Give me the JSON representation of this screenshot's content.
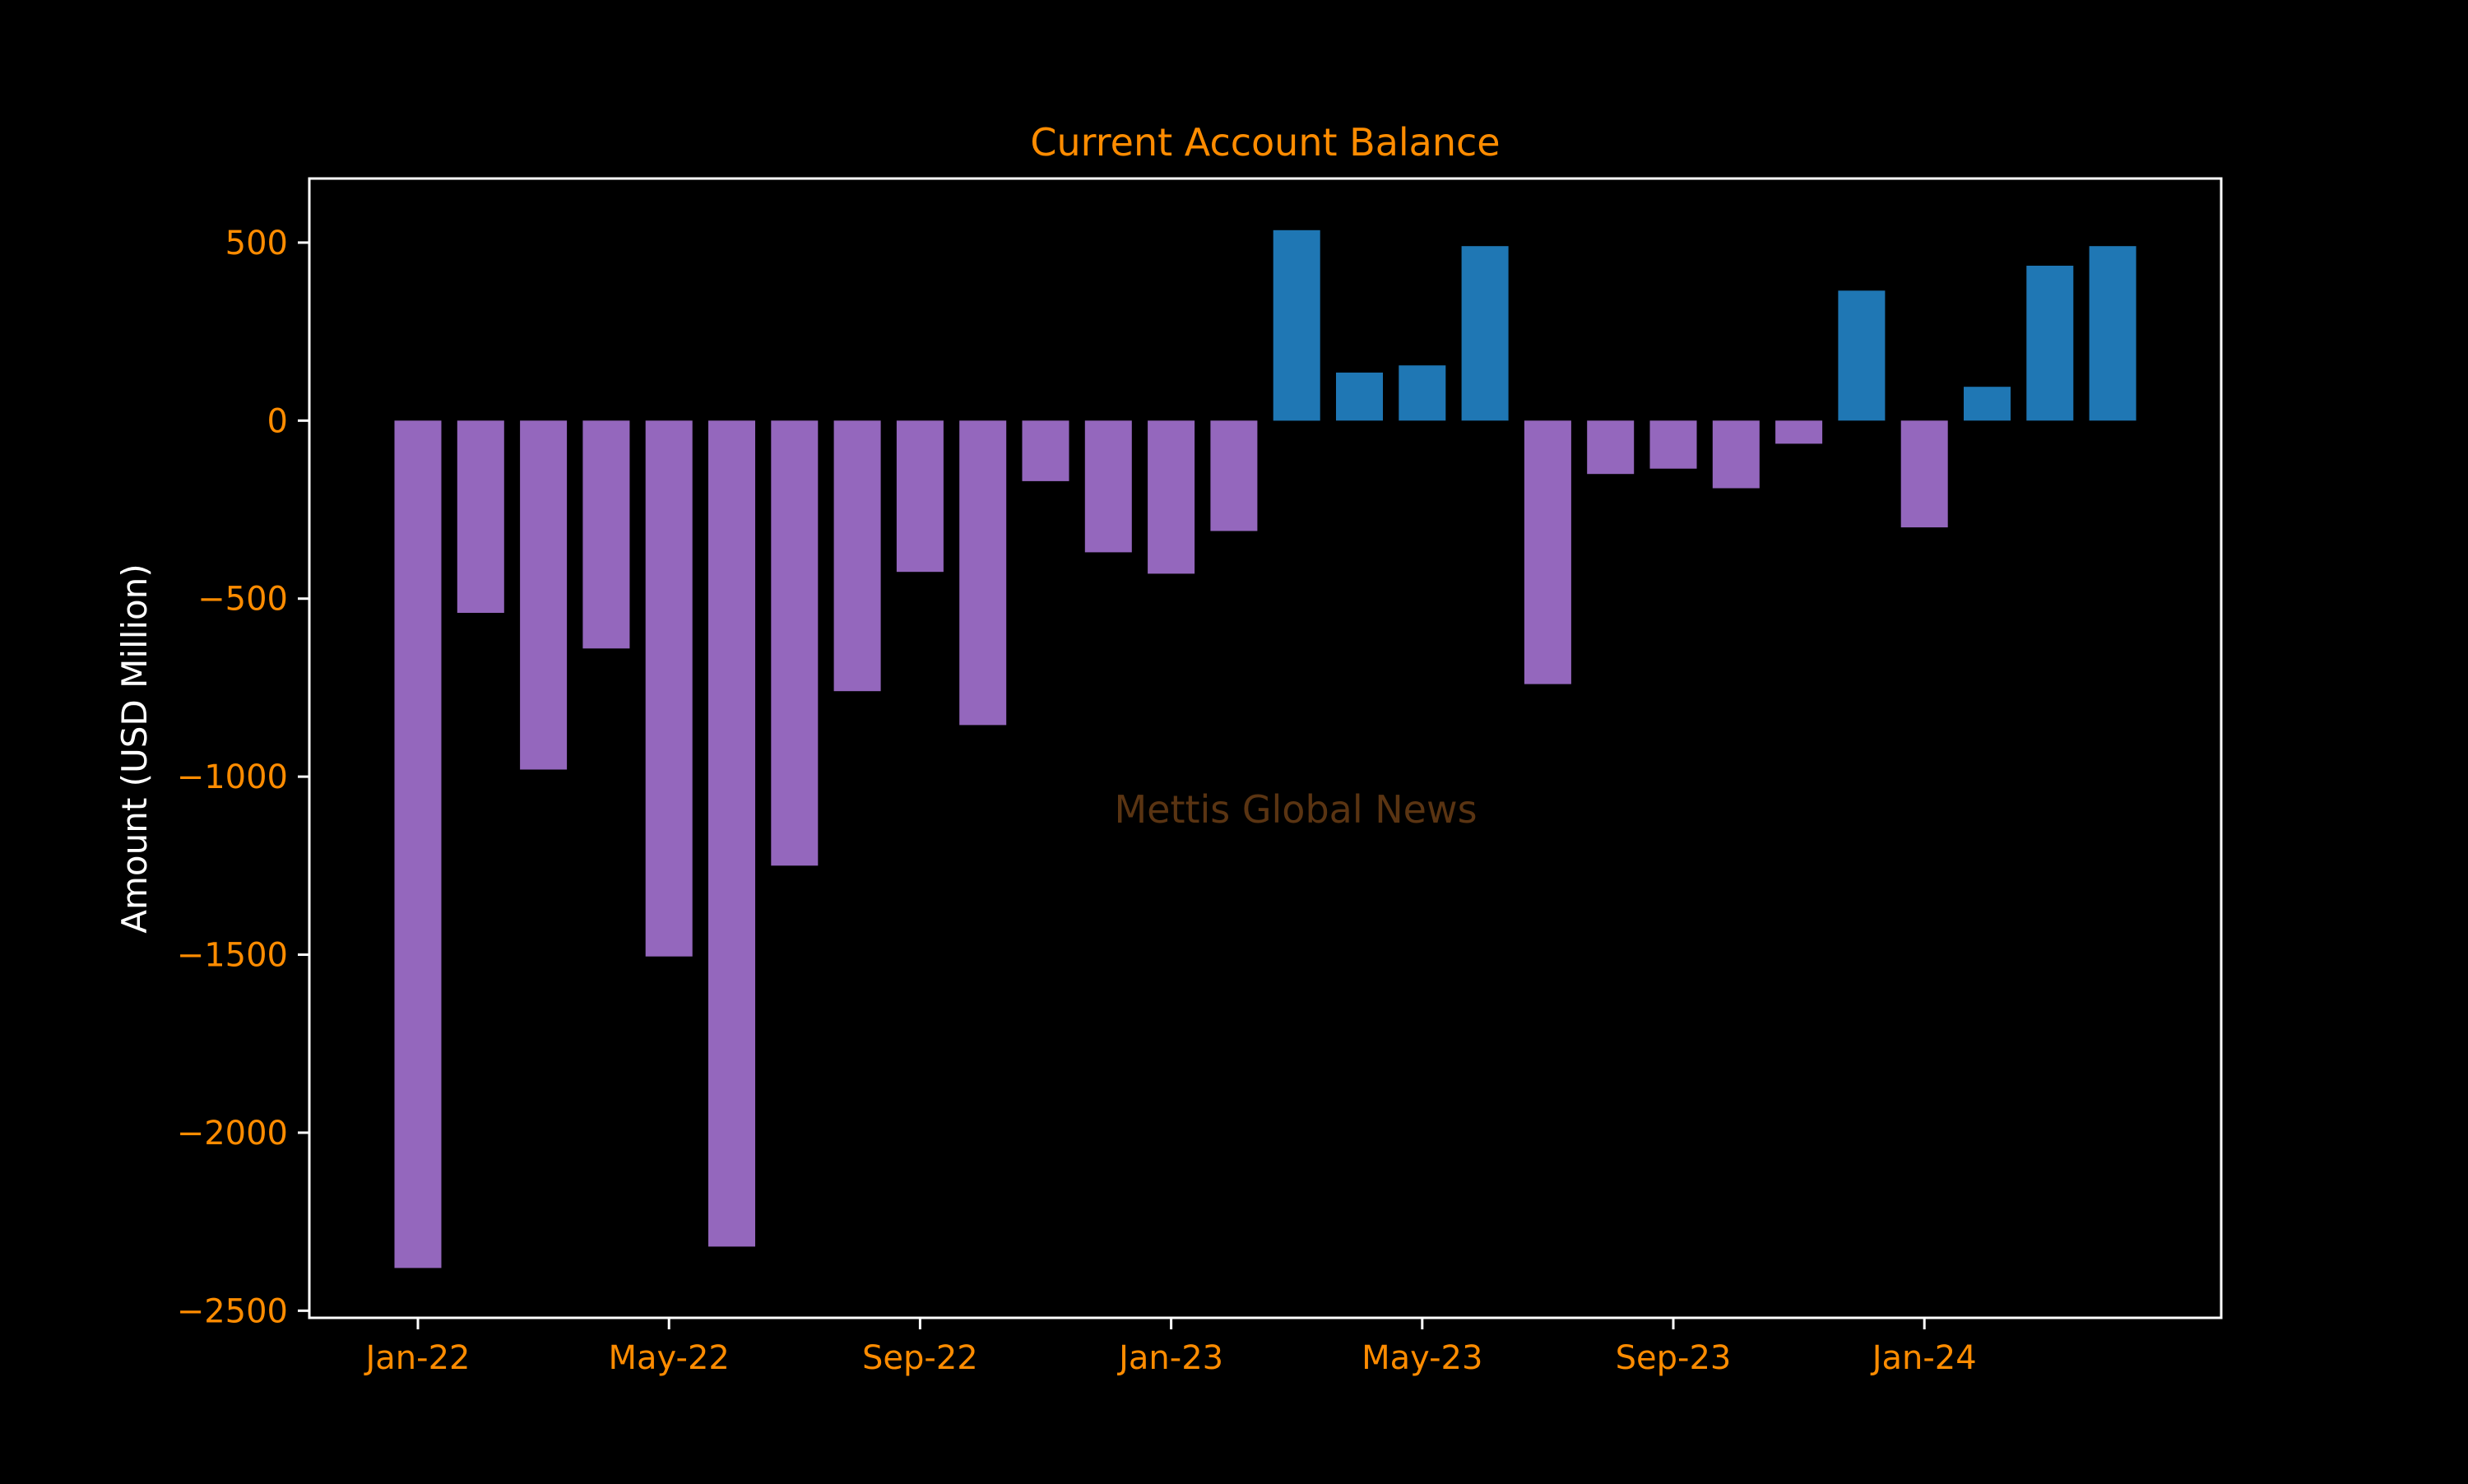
{
  "colors": {
    "background": "#000000",
    "title": "#ff8c00",
    "tick_label": "#ff8c00",
    "ylabel": "#ffffff",
    "axes_frame": "#ffffff",
    "positive_bar": "#1f77b4",
    "negative_bar": "#9467bd",
    "watermark": "#5a3412"
  },
  "watermark": "Mettis Global News",
  "chart_data": {
    "type": "bar",
    "title": "Current Account Balance",
    "xlabel": "",
    "ylabel": "Amount (USD Million)",
    "ylim": [
      -2520,
      680
    ],
    "yticks": [
      500,
      0,
      -500,
      -1000,
      -1500,
      -2000,
      -2500
    ],
    "ytick_labels": [
      "500",
      "0",
      "−500",
      "−1000",
      "−1500",
      "−2000",
      "−2500"
    ],
    "xtick_labels": [
      {
        "index": 0,
        "label": "Jan-22"
      },
      {
        "index": 4,
        "label": "May-22"
      },
      {
        "index": 8,
        "label": "Sep-22"
      },
      {
        "index": 12,
        "label": "Jan-23"
      },
      {
        "index": 16,
        "label": "May-23"
      },
      {
        "index": 20,
        "label": "Sep-23"
      },
      {
        "index": 24,
        "label": "Jan-24"
      }
    ],
    "categories": [
      "Jan-22",
      "Feb-22",
      "Mar-22",
      "Apr-22",
      "May-22",
      "Jun-22",
      "Jul-22",
      "Aug-22",
      "Sep-22",
      "Oct-22",
      "Nov-22",
      "Dec-22",
      "Jan-23",
      "Feb-23",
      "Mar-23",
      "Apr-23",
      "May-23",
      "Jun-23",
      "Jul-23",
      "Aug-23",
      "Sep-23",
      "Oct-23",
      "Nov-23",
      "Dec-23",
      "Jan-24",
      "Feb-24",
      "Mar-24",
      "Apr-24"
    ],
    "values": [
      -2380,
      -540,
      -980,
      -640,
      -1505,
      -2320,
      -1250,
      -760,
      -425,
      -855,
      -170,
      -370,
      -430,
      -310,
      535,
      135,
      155,
      490,
      -740,
      -150,
      -135,
      -190,
      -65,
      365,
      -300,
      95,
      435,
      490
    ],
    "grid": false,
    "legend": "none"
  }
}
